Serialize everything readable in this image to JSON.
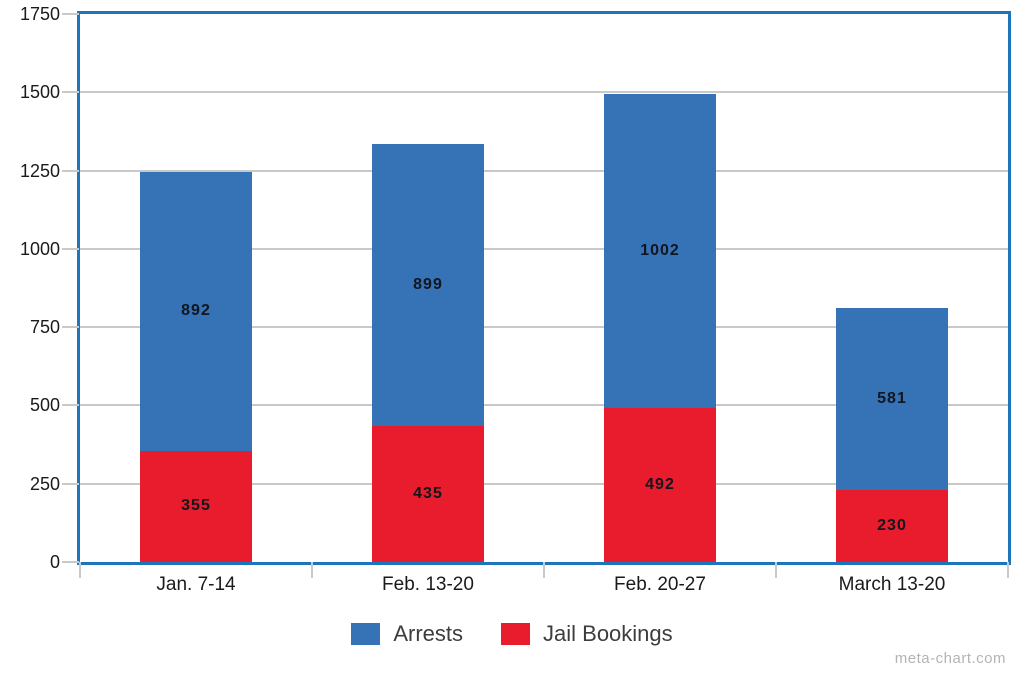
{
  "chart_data": {
    "type": "bar",
    "stacked": true,
    "title": "",
    "categories": [
      "Jan. 7-14",
      "Feb. 13-20",
      "Feb. 20-27",
      "March 13-20"
    ],
    "series": [
      {
        "name": "Jail Bookings",
        "color": "#e81c2c",
        "values": [
          355,
          435,
          492,
          230
        ]
      },
      {
        "name": "Arrests",
        "color": "#3672b6",
        "values": [
          892,
          899,
          1002,
          581
        ]
      }
    ],
    "totals": [
      1247,
      1334,
      1494,
      811
    ],
    "legend_order": [
      "Arrests",
      "Jail Bookings"
    ],
    "ylim": [
      0,
      1750
    ],
    "ytick_step": 250,
    "yticks": [
      0,
      250,
      500,
      750,
      1000,
      1250,
      1500,
      1750
    ],
    "grid": true,
    "legend_position": "bottom",
    "value_labels": "inside-segment"
  },
  "watermark": "meta-chart.com",
  "colors": {
    "plot_border": "#1d76bc",
    "gridline": "#c9c9c9",
    "tick": "#c9c9c9",
    "value_label": "#12161e",
    "axis_label": "#1a1a1a",
    "legend_text": "#3d3d3d",
    "watermark_text": "#b4b4b4",
    "background": "#ffffff"
  }
}
